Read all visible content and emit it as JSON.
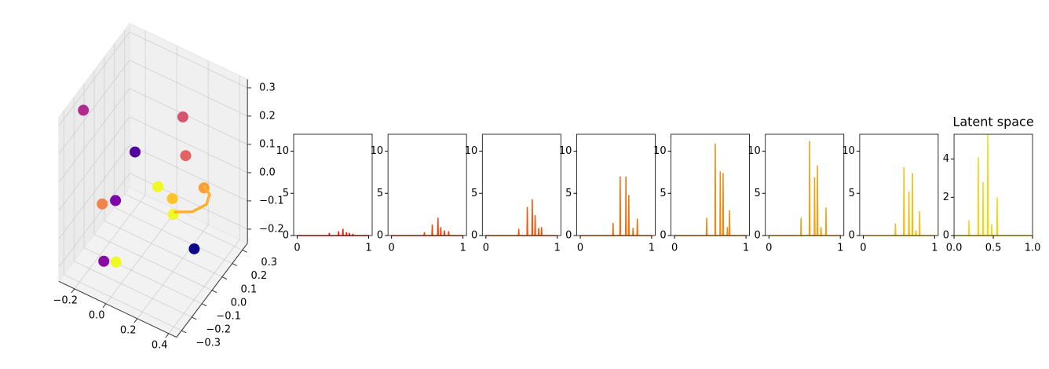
{
  "chart_data": [
    {
      "type": "scatter3d",
      "xlim": [
        -0.3,
        0.45
      ],
      "ylim": [
        -0.35,
        0.35
      ],
      "zlim": [
        -0.25,
        0.33
      ],
      "xticks": [
        {
          "value": -0.2,
          "label": "−0.2"
        },
        {
          "value": 0,
          "label": "0.0"
        },
        {
          "value": 0.2,
          "label": "0.2"
        },
        {
          "value": 0.4,
          "label": "0.4"
        }
      ],
      "yticks": [
        {
          "value": -0.3,
          "label": "−0.3"
        },
        {
          "value": -0.2,
          "label": "−0.2"
        },
        {
          "value": -0.1,
          "label": "−0.1"
        },
        {
          "value": 0,
          "label": "0.0"
        },
        {
          "value": 0.1,
          "label": "0.1"
        },
        {
          "value": 0.2,
          "label": "0.2"
        },
        {
          "value": 0.3,
          "label": "0.3"
        }
      ],
      "zticks": [
        {
          "value": -0.2,
          "label": "−0.2"
        },
        {
          "value": -0.1,
          "label": "−0.1"
        },
        {
          "value": 0,
          "label": "0.0"
        },
        {
          "value": 0.1,
          "label": "0.1"
        },
        {
          "value": 0.2,
          "label": "0.2"
        },
        {
          "value": 0.3,
          "label": "0.3"
        }
      ],
      "points": {
        "x": [
          -0.24,
          0.2,
          -0.04,
          0.25,
          0.17,
          0.23,
          0.27,
          -0.12,
          -0.1,
          0.3,
          0.24,
          -0.11,
          0.0
        ],
        "y": [
          -0.2,
          0.1,
          0,
          0.05,
          -0.1,
          -0.05,
          0.2,
          -0.2,
          -0.1,
          -0.15,
          0.15,
          -0.2,
          -0.25
        ],
        "z": [
          0.3,
          0.25,
          0.11,
          0.15,
          0.09,
          0.04,
          -0.03,
          0,
          -0.03,
          0.05,
          -0.23,
          -0.2,
          -0.15
        ],
        "colors": [
          "#b12a90",
          "#d5546e",
          "#5302a3",
          "#e16462",
          "#f0f921",
          "#fdc328",
          "#fb9f3a",
          "#f1834b",
          "#7e03a8",
          "#f0f921",
          "#0d0887",
          "#8b0aa5",
          "#f0f921"
        ]
      },
      "path": {
        "x": [
          0.34,
          0.37,
          0.35,
          0.26,
          0.15
        ],
        "y": [
          0.1,
          0.1,
          0.1,
          0.1,
          0.1
        ],
        "z": [
          0.04,
          0.02,
          -0.02,
          -0.07,
          -0.1
        ],
        "color": "#fcb030"
      }
    },
    {
      "type": "line",
      "color": "#f5190a",
      "xlim": [
        -0.05,
        1.05
      ],
      "ylim": [
        0,
        12
      ],
      "xticks": [
        0,
        1
      ],
      "yticks": [
        0,
        5,
        10
      ],
      "x": [
        0,
        0.445,
        0.45,
        0.455,
        0.575,
        0.58,
        0.585,
        0.635,
        0.64,
        0.645,
        0.685,
        0.69,
        0.695,
        0.725,
        0.73,
        0.735,
        0.775,
        0.78,
        0.785,
        1
      ],
      "values": [
        0,
        0,
        0.3,
        0,
        0,
        0.5,
        0,
        0,
        0.8,
        0,
        0,
        0.4,
        0,
        0,
        0.3,
        0,
        0,
        0.2,
        0,
        0
      ]
    },
    {
      "type": "line",
      "color": "#f53c0a",
      "xlim": [
        -0.05,
        1.05
      ],
      "ylim": [
        0,
        12
      ],
      "xticks": [
        0,
        1
      ],
      "yticks": [
        0,
        5,
        10
      ],
      "x": [
        0,
        0.455,
        0.46,
        0.465,
        0.565,
        0.57,
        0.575,
        0.645,
        0.65,
        0.655,
        0.685,
        0.69,
        0.695,
        0.735,
        0.74,
        0.745,
        0.795,
        0.8,
        0.805,
        1
      ],
      "values": [
        0,
        0,
        0.4,
        0,
        0,
        1.3,
        0,
        0,
        2.1,
        0,
        0,
        1.0,
        0,
        0,
        0.6,
        0,
        0,
        0.5,
        0,
        0
      ]
    },
    {
      "type": "line",
      "color": "#f5550a",
      "xlim": [
        -0.05,
        1.05
      ],
      "ylim": [
        0,
        12
      ],
      "xticks": [
        0,
        1
      ],
      "yticks": [
        0,
        5,
        10
      ],
      "x": [
        0,
        0.455,
        0.46,
        0.465,
        0.575,
        0.58,
        0.585,
        0.645,
        0.65,
        0.655,
        0.685,
        0.69,
        0.695,
        0.735,
        0.74,
        0.745,
        0.775,
        0.78,
        0.785,
        1
      ],
      "values": [
        0,
        0,
        0.8,
        0,
        0,
        3.4,
        0,
        0,
        4.3,
        0,
        0,
        2.4,
        0,
        0,
        0.9,
        0,
        0,
        1.0,
        0,
        0
      ]
    },
    {
      "type": "line",
      "color": "#f56e0a",
      "xlim": [
        -0.05,
        1.05
      ],
      "ylim": [
        0,
        12
      ],
      "xticks": [
        0,
        1
      ],
      "yticks": [
        0,
        5,
        10
      ],
      "x": [
        0,
        0.455,
        0.46,
        0.465,
        0.555,
        0.56,
        0.565,
        0.635,
        0.64,
        0.645,
        0.675,
        0.68,
        0.685,
        0.735,
        0.74,
        0.745,
        0.795,
        0.8,
        0.805,
        1
      ],
      "values": [
        0,
        0,
        1.5,
        0,
        0,
        7.0,
        0,
        0,
        7.0,
        0,
        0,
        4.8,
        0,
        0,
        0.9,
        0,
        0,
        2.0,
        0,
        0
      ]
    },
    {
      "type": "line",
      "color": "#f5870a",
      "xlim": [
        -0.05,
        1.05
      ],
      "ylim": [
        0,
        12
      ],
      "xticks": [
        0,
        1
      ],
      "yticks": [
        0,
        5,
        10
      ],
      "x": [
        0,
        0.445,
        0.45,
        0.455,
        0.565,
        0.57,
        0.575,
        0.635,
        0.64,
        0.645,
        0.675,
        0.68,
        0.685,
        0.735,
        0.74,
        0.745,
        0.765,
        0.77,
        0.775,
        1
      ],
      "values": [
        0,
        0,
        2.1,
        0,
        0,
        10.9,
        0,
        0,
        7.6,
        0,
        0,
        7.4,
        0,
        0,
        1.0,
        0,
        0,
        3.0,
        0,
        0
      ]
    },
    {
      "type": "line",
      "color": "#f5a00a",
      "xlim": [
        -0.05,
        1.05
      ],
      "ylim": [
        0,
        12
      ],
      "xticks": [
        0,
        1
      ],
      "yticks": [
        0,
        5,
        10
      ],
      "x": [
        0,
        0.445,
        0.45,
        0.455,
        0.565,
        0.57,
        0.575,
        0.635,
        0.64,
        0.645,
        0.675,
        0.68,
        0.685,
        0.725,
        0.73,
        0.735,
        0.795,
        0.8,
        0.805,
        1
      ],
      "values": [
        0,
        0,
        2.1,
        0,
        0,
        11.2,
        0,
        0,
        6.9,
        0,
        0,
        8.3,
        0,
        0,
        1.0,
        0,
        0,
        3.3,
        0,
        0
      ]
    },
    {
      "type": "line",
      "color": "#f5bc0a",
      "xlim": [
        -0.05,
        1.05
      ],
      "ylim": [
        0,
        12
      ],
      "xticks": [
        0,
        1
      ],
      "yticks": [
        0,
        5,
        10
      ],
      "x": [
        0,
        0.445,
        0.45,
        0.455,
        0.565,
        0.57,
        0.575,
        0.635,
        0.64,
        0.645,
        0.685,
        0.69,
        0.695,
        0.735,
        0.74,
        0.745,
        0.785,
        0.79,
        0.795,
        1
      ],
      "values": [
        0,
        0,
        1.4,
        0,
        0,
        8.1,
        0,
        0,
        5.2,
        0,
        0,
        7.4,
        0,
        0,
        0.6,
        0,
        0,
        2.9,
        0,
        0
      ]
    },
    {
      "type": "line",
      "title": "Latent space",
      "color": "#f5d60a",
      "xlim": [
        0,
        1
      ],
      "ylim": [
        0,
        5.3
      ],
      "xticks": [
        {
          "value": 0,
          "label": "0.0"
        },
        {
          "value": 0.5,
          "label": "0.5"
        },
        {
          "value": 1,
          "label": "1.0"
        }
      ],
      "yticks": [
        0,
        2,
        4
      ],
      "x": [
        0,
        0.185,
        0.19,
        0.195,
        0.305,
        0.31,
        0.315,
        0.365,
        0.37,
        0.375,
        0.425,
        0.43,
        0.435,
        0.475,
        0.48,
        0.485,
        0.545,
        0.55,
        0.555,
        1
      ],
      "values": [
        0,
        0,
        0.8,
        0,
        0,
        4.1,
        0,
        0,
        2.8,
        0,
        0,
        5.3,
        0,
        0,
        0.6,
        0,
        0,
        2.0,
        0,
        0
      ]
    }
  ]
}
